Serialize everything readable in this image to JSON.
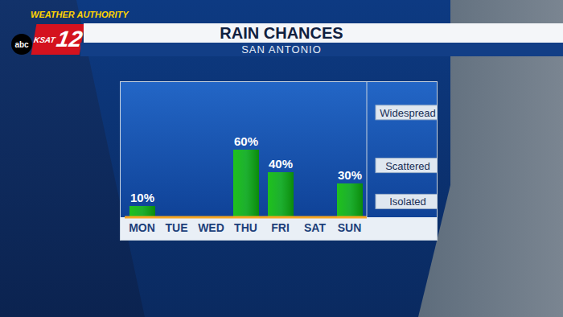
{
  "chart_data": {
    "type": "bar",
    "title": "RAIN CHANCES",
    "subtitle": "SAN ANTONIO",
    "annotations": [
      "WEATHER AUTHORITY",
      "KSAT",
      "12",
      "abc"
    ],
    "categories": [
      "MON",
      "TUE",
      "WED",
      "THU",
      "FRI",
      "SAT",
      "SUN"
    ],
    "values": [
      10,
      null,
      null,
      60,
      40,
      null,
      30
    ],
    "value_labels": [
      "10%",
      null,
      null,
      "60%",
      "40%",
      null,
      "30%"
    ],
    "color": "#1fc11c",
    "ylim": [
      0,
      120
    ],
    "yticks": [
      {
        "value": 14,
        "label": "Isolated"
      },
      {
        "value": 46,
        "label": "Scattered"
      },
      {
        "value": 93,
        "label": "Widespread"
      }
    ],
    "grid": false,
    "data_labels": true
  }
}
